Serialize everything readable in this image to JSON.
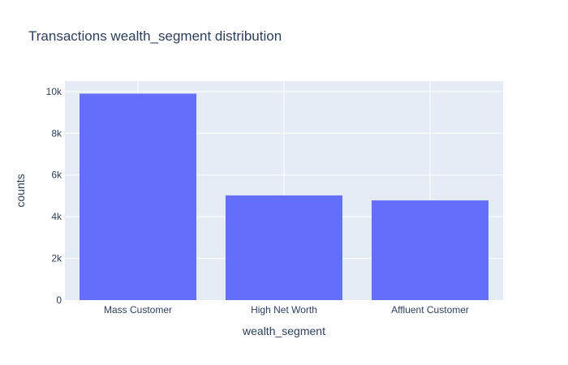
{
  "chart_data": {
    "type": "bar",
    "title": "Transactions wealth_segment distribution",
    "xlabel": "wealth_segment",
    "ylabel": "counts",
    "categories": [
      "Mass Customer",
      "High Net Worth",
      "Affluent Customer"
    ],
    "values": [
      9900,
      5020,
      4780
    ],
    "ylim": [
      0,
      10500
    ],
    "yticks": [
      0,
      2000,
      4000,
      6000,
      8000,
      10000
    ],
    "ytick_labels": [
      "0",
      "2k",
      "4k",
      "6k",
      "8k",
      "10k"
    ],
    "grid": true,
    "legend": "none"
  },
  "colors": {
    "bar": "#636efa",
    "plot_background": "#e5ecf6",
    "grid": "#ffffff",
    "text": "#2a3f5f"
  }
}
